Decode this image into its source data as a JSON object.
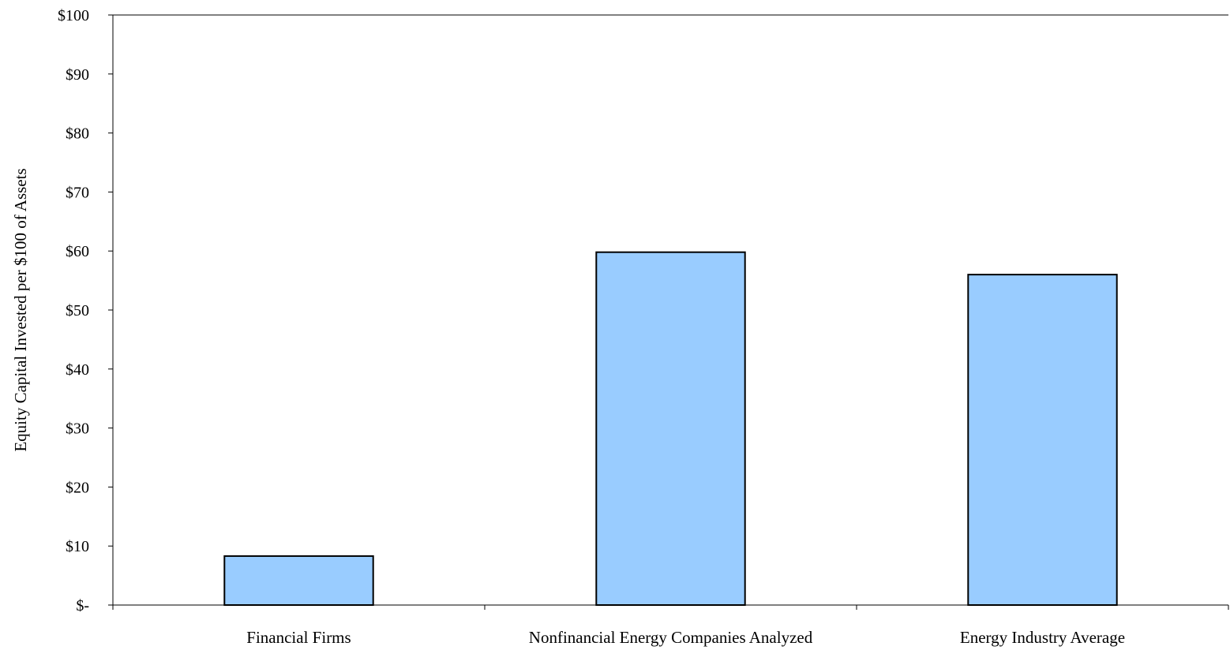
{
  "chart_data": {
    "type": "bar",
    "title": "",
    "xlabel": "",
    "ylabel": "Equity Capital Invested per $100 of Assets",
    "categories": [
      "Financial Firms",
      "Nonfinancial Energy Companies Analyzed",
      "Energy Industry Average"
    ],
    "values": [
      8.3,
      59.8,
      56.0
    ],
    "ylim": [
      0,
      100
    ],
    "yticks": [
      0,
      10,
      20,
      30,
      40,
      50,
      60,
      70,
      80,
      90,
      100
    ],
    "ytick_labels": [
      "$-",
      "$10",
      "$20",
      "$30",
      "$40",
      "$50",
      "$60",
      "$70",
      "$80",
      "$90",
      "$100"
    ],
    "grid": false,
    "legend": "none",
    "bar_color": "#99ccff",
    "bar_edge_color": "#000000"
  }
}
